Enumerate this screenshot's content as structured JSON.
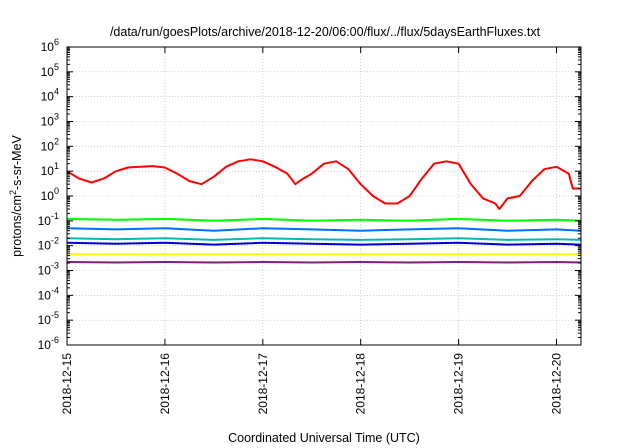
{
  "chart_data": {
    "type": "line",
    "title": "/data/run/goesPlots/archive/2018-12-20/06:00/flux/../flux/5daysEarthFluxes.txt",
    "xlabel": "Coordinated Universal Time (UTC)",
    "ylabel": "protons/cm²-s-sr-MeV",
    "ylabel_parts": {
      "before": "protons/cm",
      "sup": "2",
      "after": "-s-sr-MeV"
    },
    "x_scale": "time",
    "y_scale": "log",
    "xlim": [
      "2018-12-15T00:00",
      "2018-12-20T06:00"
    ],
    "ylim": [
      1e-06,
      1000000.0
    ],
    "x_ticks": [
      "2018-12-15",
      "2018-12-16",
      "2018-12-17",
      "2018-12-18",
      "2018-12-19",
      "2018-12-20"
    ],
    "y_ticks": [
      {
        "base": "10",
        "exp": "-6"
      },
      {
        "base": "10",
        "exp": "-5"
      },
      {
        "base": "10",
        "exp": "-4"
      },
      {
        "base": "10",
        "exp": "-3"
      },
      {
        "base": "10",
        "exp": "-2"
      },
      {
        "base": "10",
        "exp": "-1"
      },
      {
        "base": "10",
        "exp": "0"
      },
      {
        "base": "10",
        "exp": "1"
      },
      {
        "base": "10",
        "exp": "2"
      },
      {
        "base": "10",
        "exp": "3"
      },
      {
        "base": "10",
        "exp": "4"
      },
      {
        "base": "10",
        "exp": "5"
      },
      {
        "base": "10",
        "exp": "6"
      }
    ],
    "grid": true,
    "legend": "none",
    "series": [
      {
        "color": "#ff0000",
        "x": [
          "2018-12-15T00:00",
          "2018-12-15T03:00",
          "2018-12-15T06:00",
          "2018-12-15T09:00",
          "2018-12-15T12:00",
          "2018-12-15T15:00",
          "2018-12-15T18:00",
          "2018-12-15T21:00",
          "2018-12-16T00:00",
          "2018-12-16T03:00",
          "2018-12-16T06:00",
          "2018-12-16T09:00",
          "2018-12-16T12:00",
          "2018-12-16T15:00",
          "2018-12-16T18:00",
          "2018-12-16T21:00",
          "2018-12-17T00:00",
          "2018-12-17T03:00",
          "2018-12-17T06:00",
          "2018-12-17T08:00",
          "2018-12-17T09:00",
          "2018-12-17T12:00",
          "2018-12-17T15:00",
          "2018-12-17T18:00",
          "2018-12-17T21:00",
          "2018-12-18T00:00",
          "2018-12-18T03:00",
          "2018-12-18T06:00",
          "2018-12-18T09:00",
          "2018-12-18T12:00",
          "2018-12-18T15:00",
          "2018-12-18T18:00",
          "2018-12-18T21:00",
          "2018-12-19T00:00",
          "2018-12-19T03:00",
          "2018-12-19T06:00",
          "2018-12-19T09:00",
          "2018-12-19T10:00",
          "2018-12-19T12:00",
          "2018-12-19T15:00",
          "2018-12-19T18:00",
          "2018-12-19T21:00",
          "2018-12-20T00:00",
          "2018-12-20T03:00",
          "2018-12-20T04:00",
          "2018-12-20T06:00"
        ],
        "y": [
          10,
          5,
          3.5,
          5,
          10,
          14,
          15,
          16,
          14,
          8,
          4,
          3,
          6,
          15,
          25,
          30,
          25,
          15,
          8,
          3,
          4,
          8,
          20,
          25,
          12,
          3,
          1,
          0.5,
          0.5,
          1,
          5,
          20,
          25,
          20,
          3,
          0.8,
          0.5,
          0.3,
          0.8,
          1,
          4,
          12,
          15,
          8,
          2,
          2
        ]
      },
      {
        "color": "#00ff00",
        "x": [
          "2018-12-15T00:00",
          "2018-12-15T12:00",
          "2018-12-16T00:00",
          "2018-12-16T12:00",
          "2018-12-17T00:00",
          "2018-12-17T12:00",
          "2018-12-18T00:00",
          "2018-12-18T12:00",
          "2018-12-19T00:00",
          "2018-12-19T12:00",
          "2018-12-20T00:00",
          "2018-12-20T06:00"
        ],
        "y": [
          0.12,
          0.11,
          0.12,
          0.1,
          0.12,
          0.1,
          0.11,
          0.1,
          0.12,
          0.1,
          0.11,
          0.1
        ]
      },
      {
        "color": "#0070ff",
        "x": [
          "2018-12-15T00:00",
          "2018-12-15T12:00",
          "2018-12-16T00:00",
          "2018-12-16T12:00",
          "2018-12-17T00:00",
          "2018-12-17T12:00",
          "2018-12-18T00:00",
          "2018-12-18T12:00",
          "2018-12-19T00:00",
          "2018-12-19T12:00",
          "2018-12-20T00:00",
          "2018-12-20T06:00"
        ],
        "y": [
          0.05,
          0.045,
          0.05,
          0.04,
          0.05,
          0.045,
          0.04,
          0.045,
          0.05,
          0.04,
          0.045,
          0.04
        ]
      },
      {
        "color": "#00b8b8",
        "x": [
          "2018-12-15T00:00",
          "2018-12-15T12:00",
          "2018-12-16T00:00",
          "2018-12-16T12:00",
          "2018-12-17T00:00",
          "2018-12-17T12:00",
          "2018-12-18T00:00",
          "2018-12-18T12:00",
          "2018-12-19T00:00",
          "2018-12-19T12:00",
          "2018-12-20T00:00",
          "2018-12-20T06:00"
        ],
        "y": [
          0.02,
          0.018,
          0.02,
          0.017,
          0.02,
          0.018,
          0.017,
          0.018,
          0.02,
          0.017,
          0.018,
          0.017
        ]
      },
      {
        "color": "#0000cc",
        "x": [
          "2018-12-15T00:00",
          "2018-12-15T12:00",
          "2018-12-16T00:00",
          "2018-12-16T12:00",
          "2018-12-17T00:00",
          "2018-12-17T12:00",
          "2018-12-18T00:00",
          "2018-12-18T12:00",
          "2018-12-19T00:00",
          "2018-12-19T12:00",
          "2018-12-20T00:00",
          "2018-12-20T06:00"
        ],
        "y": [
          0.013,
          0.012,
          0.013,
          0.011,
          0.013,
          0.012,
          0.011,
          0.012,
          0.013,
          0.011,
          0.012,
          0.011
        ]
      },
      {
        "color": "#ffff00",
        "x": [
          "2018-12-15T00:00",
          "2018-12-15T12:00",
          "2018-12-16T00:00",
          "2018-12-16T12:00",
          "2018-12-17T00:00",
          "2018-12-17T12:00",
          "2018-12-18T00:00",
          "2018-12-18T12:00",
          "2018-12-19T00:00",
          "2018-12-19T12:00",
          "2018-12-20T00:00",
          "2018-12-20T06:00"
        ],
        "y": [
          0.0045,
          0.0045,
          0.0045,
          0.0045,
          0.0045,
          0.0045,
          0.0045,
          0.0045,
          0.0045,
          0.0045,
          0.0045,
          0.0045
        ]
      },
      {
        "color": "#7f1f7f",
        "x": [
          "2018-12-15T00:00",
          "2018-12-15T12:00",
          "2018-12-16T00:00",
          "2018-12-16T12:00",
          "2018-12-17T00:00",
          "2018-12-17T12:00",
          "2018-12-18T00:00",
          "2018-12-18T12:00",
          "2018-12-19T00:00",
          "2018-12-19T12:00",
          "2018-12-20T00:00",
          "2018-12-20T06:00"
        ],
        "y": [
          0.0022,
          0.0021,
          0.0022,
          0.0021,
          0.0022,
          0.0021,
          0.0022,
          0.0021,
          0.0022,
          0.0021,
          0.0022,
          0.0021
        ]
      }
    ]
  }
}
